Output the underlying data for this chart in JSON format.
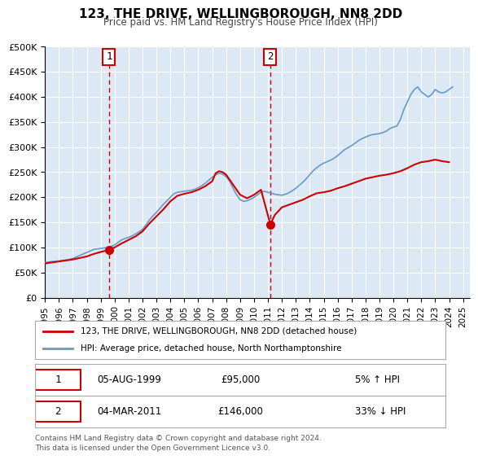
{
  "title": "123, THE DRIVE, WELLINGBOROUGH, NN8 2DD",
  "subtitle": "Price paid vs. HM Land Registry's House Price Index (HPI)",
  "background_color": "#ffffff",
  "plot_bg_color": "#dce9f5",
  "grid_color": "#ffffff",
  "xlabel": "",
  "ylabel": "",
  "ylim": [
    0,
    500000
  ],
  "yticks": [
    0,
    50000,
    100000,
    150000,
    200000,
    250000,
    300000,
    350000,
    400000,
    450000,
    500000
  ],
  "ytick_labels": [
    "£0",
    "£50K",
    "£100K",
    "£150K",
    "£200K",
    "£250K",
    "£300K",
    "£350K",
    "£400K",
    "£450K",
    "£500K"
  ],
  "xlim_start": 1995.0,
  "xlim_end": 2025.5,
  "xtick_years": [
    1995,
    1996,
    1997,
    1998,
    1999,
    2000,
    2001,
    2002,
    2003,
    2004,
    2005,
    2006,
    2007,
    2008,
    2009,
    2010,
    2011,
    2012,
    2013,
    2014,
    2015,
    2016,
    2017,
    2018,
    2019,
    2020,
    2021,
    2022,
    2023,
    2024,
    2025
  ],
  "sale1_x": 1999.59,
  "sale1_y": 95000,
  "sale1_label": "1",
  "sale1_date": "05-AUG-1999",
  "sale1_price": "£95,000",
  "sale1_hpi": "5% ↑ HPI",
  "sale2_x": 2011.17,
  "sale2_y": 146000,
  "sale2_label": "2",
  "sale2_date": "04-MAR-2011",
  "sale2_price": "£146,000",
  "sale2_hpi": "33% ↓ HPI",
  "red_line_color": "#cc0000",
  "blue_line_color": "#6699cc",
  "sale_dot_color": "#cc0000",
  "vline_color": "#cc0000",
  "legend_label_red": "123, THE DRIVE, WELLINGBOROUGH, NN8 2DD (detached house)",
  "legend_label_blue": "HPI: Average price, detached house, North Northamptonshire",
  "footer_text": "Contains HM Land Registry data © Crown copyright and database right 2024.\nThis data is licensed under the Open Government Licence v3.0.",
  "hpi_data_x": [
    1995.0,
    1995.25,
    1995.5,
    1995.75,
    1996.0,
    1996.25,
    1996.5,
    1996.75,
    1997.0,
    1997.25,
    1997.5,
    1997.75,
    1998.0,
    1998.25,
    1998.5,
    1998.75,
    1999.0,
    1999.25,
    1999.5,
    1999.75,
    2000.0,
    2000.25,
    2000.5,
    2000.75,
    2001.0,
    2001.25,
    2001.5,
    2001.75,
    2002.0,
    2002.25,
    2002.5,
    2002.75,
    2003.0,
    2003.25,
    2003.5,
    2003.75,
    2004.0,
    2004.25,
    2004.5,
    2004.75,
    2005.0,
    2005.25,
    2005.5,
    2005.75,
    2006.0,
    2006.25,
    2006.5,
    2006.75,
    2007.0,
    2007.25,
    2007.5,
    2007.75,
    2008.0,
    2008.25,
    2008.5,
    2008.75,
    2009.0,
    2009.25,
    2009.5,
    2009.75,
    2010.0,
    2010.25,
    2010.5,
    2010.75,
    2011.0,
    2011.25,
    2011.5,
    2011.75,
    2012.0,
    2012.25,
    2012.5,
    2012.75,
    2013.0,
    2013.25,
    2013.5,
    2013.75,
    2014.0,
    2014.25,
    2014.5,
    2014.75,
    2015.0,
    2015.25,
    2015.5,
    2015.75,
    2016.0,
    2016.25,
    2016.5,
    2016.75,
    2017.0,
    2017.25,
    2017.5,
    2017.75,
    2018.0,
    2018.25,
    2018.5,
    2018.75,
    2019.0,
    2019.25,
    2019.5,
    2019.75,
    2020.0,
    2020.25,
    2020.5,
    2020.75,
    2021.0,
    2021.25,
    2021.5,
    2021.75,
    2022.0,
    2022.25,
    2022.5,
    2022.75,
    2023.0,
    2023.25,
    2023.5,
    2023.75,
    2024.0,
    2024.25
  ],
  "hpi_data_y": [
    70000,
    71000,
    72000,
    72500,
    73000,
    74000,
    75000,
    76000,
    78000,
    81000,
    84000,
    87000,
    90000,
    93000,
    96000,
    97000,
    98000,
    99000,
    100000,
    102000,
    105000,
    110000,
    115000,
    118000,
    120000,
    123000,
    127000,
    131000,
    136000,
    145000,
    155000,
    163000,
    170000,
    178000,
    186000,
    193000,
    200000,
    207000,
    210000,
    211000,
    212000,
    213000,
    214000,
    216000,
    219000,
    223000,
    228000,
    234000,
    240000,
    245000,
    248000,
    246000,
    241000,
    232000,
    218000,
    205000,
    195000,
    192000,
    193000,
    196000,
    200000,
    205000,
    210000,
    212000,
    210000,
    208000,
    206000,
    205000,
    204000,
    206000,
    209000,
    213000,
    218000,
    224000,
    230000,
    237000,
    245000,
    253000,
    259000,
    264000,
    268000,
    271000,
    274000,
    278000,
    283000,
    289000,
    295000,
    299000,
    303000,
    308000,
    313000,
    317000,
    320000,
    323000,
    325000,
    326000,
    327000,
    329000,
    332000,
    337000,
    340000,
    342000,
    355000,
    375000,
    390000,
    405000,
    415000,
    420000,
    410000,
    405000,
    400000,
    405000,
    415000,
    410000,
    408000,
    410000,
    415000,
    420000
  ],
  "price_data_x": [
    1995.0,
    1995.5,
    1996.0,
    1996.5,
    1997.0,
    1997.5,
    1998.0,
    1998.5,
    1999.0,
    1999.59,
    2000.0,
    2000.5,
    2001.0,
    2001.5,
    2002.0,
    2002.5,
    2003.0,
    2003.5,
    2004.0,
    2004.5,
    2005.0,
    2005.5,
    2006.0,
    2006.5,
    2007.0,
    2007.25,
    2007.5,
    2007.75,
    2008.0,
    2008.5,
    2009.0,
    2009.5,
    2010.0,
    2010.5,
    2011.17,
    2011.5,
    2012.0,
    2012.5,
    2013.0,
    2013.5,
    2014.0,
    2014.5,
    2015.0,
    2015.5,
    2016.0,
    2016.5,
    2017.0,
    2017.5,
    2018.0,
    2018.5,
    2019.0,
    2019.5,
    2020.0,
    2020.5,
    2021.0,
    2021.5,
    2022.0,
    2022.5,
    2023.0,
    2023.5,
    2024.0
  ],
  "price_data_y": [
    68000,
    70000,
    72000,
    74000,
    76000,
    79000,
    82000,
    87000,
    91000,
    95000,
    100000,
    108000,
    115000,
    122000,
    132000,
    148000,
    162000,
    176000,
    192000,
    203000,
    207000,
    210000,
    215000,
    222000,
    232000,
    248000,
    252000,
    250000,
    245000,
    225000,
    205000,
    198000,
    205000,
    215000,
    146000,
    165000,
    180000,
    185000,
    190000,
    195000,
    202000,
    208000,
    210000,
    213000,
    218000,
    222000,
    227000,
    232000,
    237000,
    240000,
    243000,
    245000,
    248000,
    252000,
    258000,
    265000,
    270000,
    272000,
    275000,
    272000,
    270000
  ]
}
